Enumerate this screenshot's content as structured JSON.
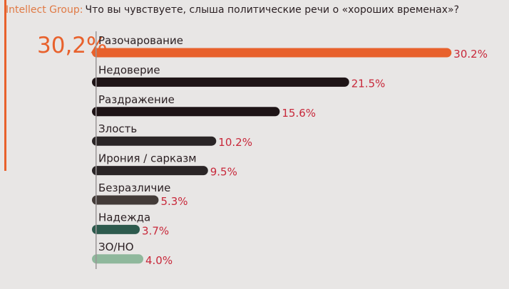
{
  "header": {
    "source": "Intellect Group:",
    "question": "Что вы чувствуете, слыша политические речи о «хороших временах»?"
  },
  "highlight": {
    "value": "30,2%",
    "color": "#e8612c"
  },
  "chart_data": {
    "type": "bar",
    "orientation": "horizontal",
    "title": "Что вы чувствуете, слыша политические речи о «хороших временах»?",
    "categories": [
      "Разочарование",
      "Недоверие",
      "Раздражение",
      "Злость",
      "Ирония / сарказм",
      "Безразличие",
      "Надежда",
      "ЗО/НО"
    ],
    "values": [
      30.2,
      21.5,
      15.6,
      10.2,
      9.5,
      5.3,
      3.7,
      4.0
    ],
    "value_labels": [
      "30.2%",
      "21.5%",
      "15.6%",
      "10.2%",
      "9.5%",
      "5.3%",
      "3.7%",
      "4.0%"
    ],
    "colors": [
      "#e8612c",
      "#1e1416",
      "#1e1416",
      "#2a2526",
      "#2a2526",
      "#433b38",
      "#2d5a4d",
      "#8fb89c"
    ],
    "value_label_color": "#c8283a",
    "unit": "%",
    "grid": false,
    "legend": "none"
  }
}
